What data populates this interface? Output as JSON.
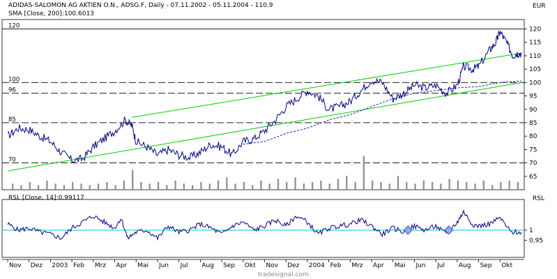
{
  "header": {
    "title": "ADIDAS-SALOMON AG AKTIEN O.N., ADSG.F, Daily - 07.11.2002 - 05.11.2004 - 110.9",
    "sma_label": "SMA [Close, 200]:100.6013",
    "rsl_label": "RSL [Close, 14]:0.99117",
    "currency": "EUR",
    "rsl_axis_label": "RSL",
    "watermark": "tradesignal.com"
  },
  "colors": {
    "price": "#000080",
    "channel": "#00cc00",
    "sma": "#1a1ab0",
    "volume": "#8c8c8c",
    "rsl": "#000080",
    "rsl_ref": "#00c8d0",
    "levels": "#000000",
    "marker": "#8fa8ff"
  },
  "chart_data": {
    "type": "line",
    "price_axis": {
      "min": 60,
      "max": 123,
      "ticks": [
        65,
        70,
        75,
        80,
        85,
        90,
        95,
        100,
        105,
        110,
        115,
        120
      ]
    },
    "rsl_axis": {
      "min": 0.88,
      "max": 1.13,
      "ticks": [
        {
          "value": 1.0,
          "label": "1"
        },
        {
          "value": 0.95,
          "label": "0,95"
        }
      ]
    },
    "x_axis_labels": [
      "Nov",
      "Dez",
      "2003",
      "Feb",
      "Mrz",
      "Apr",
      "Mai",
      "Jun",
      "Jul",
      "Aug",
      "Sep",
      "Okt",
      "Nov",
      "Dez",
      "2004",
      "Feb",
      "Mrz",
      "Apr",
      "Mai",
      "Jun",
      "Jul",
      "Aug",
      "Sep",
      "Okt"
    ],
    "horizontal_levels": [
      {
        "value": 120,
        "label": "120"
      },
      {
        "value": 100,
        "label": "100"
      },
      {
        "value": 96,
        "label": "96"
      },
      {
        "value": 85,
        "label": "85"
      },
      {
        "value": 70,
        "label": "70"
      }
    ],
    "channel_lines": [
      {
        "name": "upper",
        "from": {
          "month": "Apr 2003",
          "value": 87
        },
        "to": {
          "month": "Okt 2004",
          "value": 111
        }
      },
      {
        "name": "lower",
        "from": {
          "month": "Nov 2002",
          "value": 67
        },
        "to": {
          "month": "Okt 2004",
          "value": 100
        }
      }
    ],
    "price_series": [
      [
        0,
        80
      ],
      [
        0.5,
        83
      ],
      [
        1,
        82.5
      ],
      [
        1.5,
        80
      ],
      [
        2,
        78
      ],
      [
        2.5,
        74
      ],
      [
        3,
        71
      ],
      [
        3.5,
        71.5
      ],
      [
        4,
        76
      ],
      [
        4.5,
        79
      ],
      [
        5,
        82
      ],
      [
        5.5,
        86
      ],
      [
        5.8,
        84
      ],
      [
        6,
        78
      ],
      [
        6.5,
        76
      ],
      [
        7,
        73
      ],
      [
        7.5,
        75
      ],
      [
        8,
        73
      ],
      [
        8.5,
        72
      ],
      [
        9,
        74
      ],
      [
        9.5,
        77
      ],
      [
        10,
        76
      ],
      [
        10.5,
        73
      ],
      [
        11,
        78
      ],
      [
        11.5,
        79
      ],
      [
        12,
        82
      ],
      [
        12.5,
        86
      ],
      [
        13,
        91
      ],
      [
        13.5,
        94
      ],
      [
        14,
        97
      ],
      [
        14.5,
        95
      ],
      [
        15,
        90
      ],
      [
        15.5,
        91
      ],
      [
        16,
        93
      ],
      [
        16.5,
        97
      ],
      [
        17,
        101
      ],
      [
        17.5,
        100
      ],
      [
        18,
        94
      ],
      [
        18.5,
        96
      ],
      [
        19,
        99
      ],
      [
        19.5,
        98
      ],
      [
        20,
        99
      ],
      [
        20.5,
        96
      ],
      [
        21,
        99
      ],
      [
        21.3,
        106
      ],
      [
        21.7,
        105
      ],
      [
        22,
        106
      ],
      [
        22.5,
        112
      ],
      [
        22.8,
        115
      ],
      [
        23,
        119
      ],
      [
        23.3,
        115
      ],
      [
        23.6,
        110
      ],
      [
        23.8,
        111
      ],
      [
        24,
        110.9
      ]
    ],
    "sma_series": [
      [
        11,
        77
      ],
      [
        12,
        78
      ],
      [
        13,
        81
      ],
      [
        14,
        83
      ],
      [
        15,
        86
      ],
      [
        16,
        88
      ],
      [
        17,
        91
      ],
      [
        18,
        94
      ],
      [
        19,
        96
      ],
      [
        20,
        97
      ],
      [
        21,
        98
      ],
      [
        22,
        98.5
      ],
      [
        23,
        100
      ],
      [
        24,
        100.6
      ]
    ],
    "rsl_series": [
      [
        0,
        1.03
      ],
      [
        0.5,
        1.0
      ],
      [
        1,
        1.01
      ],
      [
        1.5,
        0.99
      ],
      [
        2,
        0.98
      ],
      [
        2.5,
        0.96
      ],
      [
        3,
        1.01
      ],
      [
        3.5,
        1.04
      ],
      [
        4,
        1.07
      ],
      [
        4.5,
        1.04
      ],
      [
        5,
        1.01
      ],
      [
        5.3,
        1.06
      ],
      [
        5.6,
        0.96
      ],
      [
        6,
        0.99
      ],
      [
        6.5,
        1.0
      ],
      [
        7,
        0.96
      ],
      [
        7.5,
        1.02
      ],
      [
        8,
        0.99
      ],
      [
        8.5,
        1.0
      ],
      [
        9,
        1.03
      ],
      [
        9.5,
        1.01
      ],
      [
        10,
        0.98
      ],
      [
        10.5,
        1.02
      ],
      [
        11,
        1.04
      ],
      [
        11.5,
        1.0
      ],
      [
        12,
        1.02
      ],
      [
        12.5,
        1.05
      ],
      [
        13,
        1.02
      ],
      [
        13.5,
        1.07
      ],
      [
        14,
        1.04
      ],
      [
        14.5,
        0.98
      ],
      [
        15,
        1.01
      ],
      [
        15.5,
        1.02
      ],
      [
        16,
        1.03
      ],
      [
        16.5,
        1.05
      ],
      [
        17,
        1.02
      ],
      [
        17.5,
        0.98
      ],
      [
        18,
        1.01
      ],
      [
        18.5,
        0.99
      ],
      [
        19,
        1.02
      ],
      [
        19.5,
        1.0
      ],
      [
        20,
        1.02
      ],
      [
        20.5,
        0.98
      ],
      [
        21,
        1.04
      ],
      [
        21.3,
        1.09
      ],
      [
        21.7,
        1.03
      ],
      [
        22,
        1.02
      ],
      [
        22.5,
        1.03
      ],
      [
        23,
        1.06
      ],
      [
        23.5,
        0.99
      ],
      [
        24,
        0.99
      ]
    ],
    "rsl_markers": [
      18.7,
      20.6
    ],
    "volume_bars": [
      [
        0.2,
        4
      ],
      [
        0.6,
        3
      ],
      [
        1.0,
        5
      ],
      [
        1.4,
        3
      ],
      [
        1.8,
        6
      ],
      [
        2.2,
        4
      ],
      [
        2.6,
        3
      ],
      [
        3.0,
        5
      ],
      [
        3.4,
        4
      ],
      [
        3.8,
        3
      ],
      [
        4.2,
        4
      ],
      [
        4.6,
        5
      ],
      [
        5.0,
        3
      ],
      [
        5.4,
        6
      ],
      [
        5.8,
        13
      ],
      [
        6.2,
        5
      ],
      [
        6.6,
        4
      ],
      [
        7.0,
        5
      ],
      [
        7.4,
        3
      ],
      [
        7.8,
        6
      ],
      [
        8.2,
        4
      ],
      [
        8.6,
        3
      ],
      [
        9.0,
        5
      ],
      [
        9.4,
        4
      ],
      [
        9.8,
        6
      ],
      [
        10.2,
        8
      ],
      [
        10.6,
        4
      ],
      [
        11.0,
        5
      ],
      [
        11.4,
        3
      ],
      [
        11.8,
        6
      ],
      [
        12.2,
        4
      ],
      [
        12.6,
        7
      ],
      [
        13.0,
        5
      ],
      [
        13.4,
        8
      ],
      [
        13.8,
        4
      ],
      [
        14.2,
        5
      ],
      [
        14.6,
        6
      ],
      [
        15.0,
        4
      ],
      [
        15.4,
        7
      ],
      [
        15.8,
        9
      ],
      [
        16.2,
        5
      ],
      [
        16.6,
        22
      ],
      [
        17.0,
        6
      ],
      [
        17.4,
        5
      ],
      [
        17.8,
        4
      ],
      [
        18.2,
        9
      ],
      [
        18.6,
        5
      ],
      [
        19.0,
        4
      ],
      [
        19.4,
        6
      ],
      [
        19.8,
        5
      ],
      [
        20.2,
        4
      ],
      [
        20.6,
        7
      ],
      [
        21.0,
        6
      ],
      [
        21.4,
        5
      ],
      [
        21.8,
        4
      ],
      [
        22.2,
        6
      ],
      [
        22.6,
        3
      ],
      [
        23.0,
        5
      ],
      [
        23.4,
        6
      ],
      [
        23.8,
        5
      ]
    ]
  }
}
